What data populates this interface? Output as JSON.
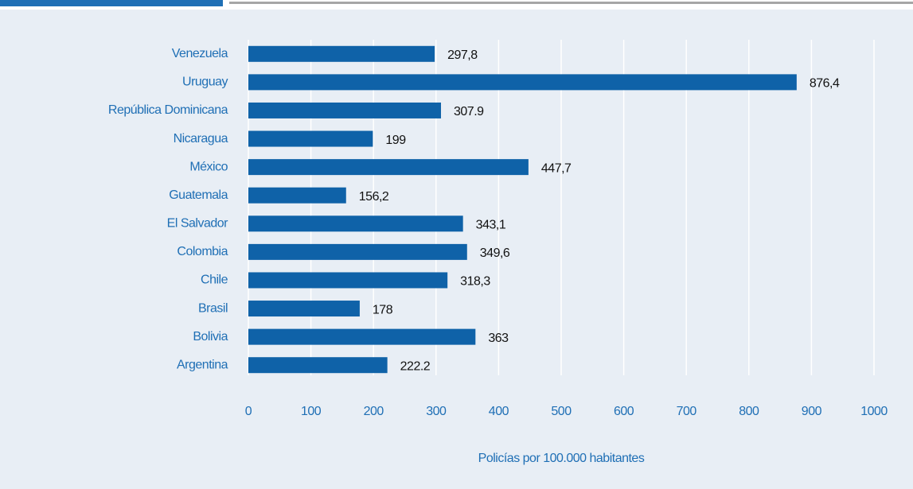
{
  "chart_data": {
    "type": "barh",
    "x_label": "Policías por 100.000 habitantes",
    "categories": [
      "Venezuela",
      "Uruguay",
      "República Dominicana",
      "Nicaragua",
      "México",
      "Guatemala",
      "El Salvador",
      "Colombia",
      "Chile",
      "Brasil",
      "Bolivia",
      "Argentina"
    ],
    "values": [
      297.8,
      876.4,
      307.9,
      199,
      447.7,
      156.2,
      343.1,
      349.6,
      318.3,
      178,
      363,
      222.2
    ],
    "value_labels": [
      "297,8",
      "876,4",
      "307.9",
      "199",
      "447,7",
      "156,2",
      "343,1",
      "349,6",
      "318,3",
      "178",
      "363",
      "222.2"
    ],
    "color": "#0f62a8",
    "xlim": [
      0,
      1000
    ],
    "xticks": [
      0,
      100,
      200,
      300,
      400,
      500,
      600,
      700,
      800,
      900,
      1000
    ],
    "grid": true
  }
}
